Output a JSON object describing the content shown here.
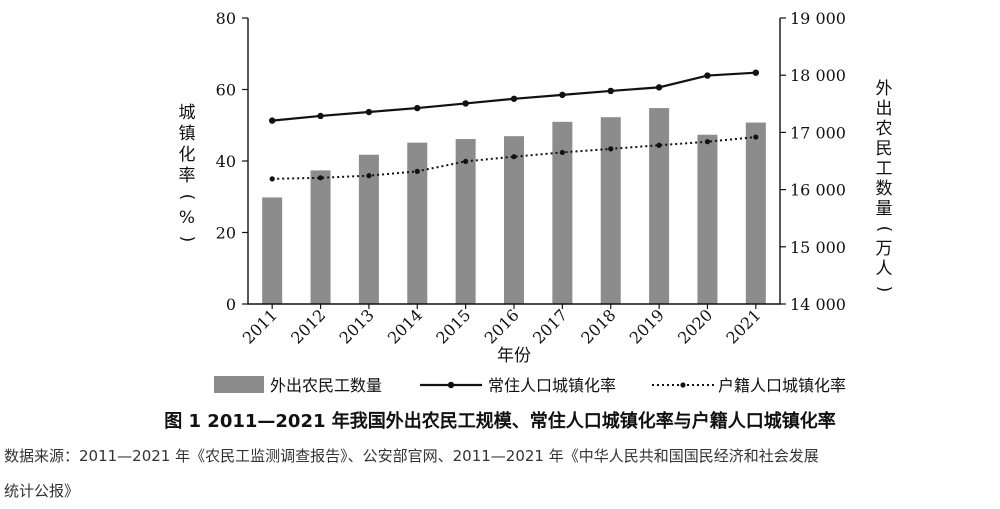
{
  "chart_data": {
    "type": "bar+line",
    "categories": [
      "2011",
      "2012",
      "2013",
      "2014",
      "2015",
      "2016",
      "2017",
      "2018",
      "2019",
      "2020",
      "2021"
    ],
    "xlabel": "年份",
    "ylabel_left": "城镇化率(%)",
    "ylabel_right": "外出农民工数量(万人)",
    "ylim_left": [
      0,
      80
    ],
    "ylim_right": [
      14000,
      19000
    ],
    "yticks_left": [
      "0",
      "20",
      "40",
      "60",
      "80"
    ],
    "yticks_right": [
      "14 000",
      "15 000",
      "16 000",
      "17 000",
      "18 000",
      "19 000"
    ],
    "series": [
      {
        "name": "外出农民工数量",
        "kind": "bar",
        "axis": "right",
        "color": "#8c8c8c",
        "values": [
          15863,
          16336,
          16610,
          16821,
          16884,
          16934,
          17185,
          17266,
          17425,
          16959,
          17172
        ]
      },
      {
        "name": "常住人口城镇化率",
        "kind": "line",
        "axis": "left",
        "color": "#111111",
        "style": "solid",
        "values": [
          51.3,
          52.6,
          53.7,
          54.8,
          56.1,
          57.4,
          58.5,
          59.6,
          60.6,
          63.9,
          64.7
        ]
      },
      {
        "name": "户籍人口城镇化率",
        "kind": "line",
        "axis": "left",
        "color": "#111111",
        "style": "dotted",
        "values": [
          35.0,
          35.3,
          35.9,
          37.1,
          39.9,
          41.2,
          42.4,
          43.4,
          44.4,
          45.4,
          46.7
        ]
      }
    ],
    "legend_position": "bottom",
    "grid": false
  },
  "caption": "图 1  2011—2021 年我国外出农民工规模、常住人口城镇化率与户籍人口城镇化率",
  "source_line1": "数据来源：2011—2021 年《农民工监测调查报告》、公安部官网、2011—2021 年《中华人民共和国国民经济和社会发展",
  "source_line2": "统计公报》"
}
